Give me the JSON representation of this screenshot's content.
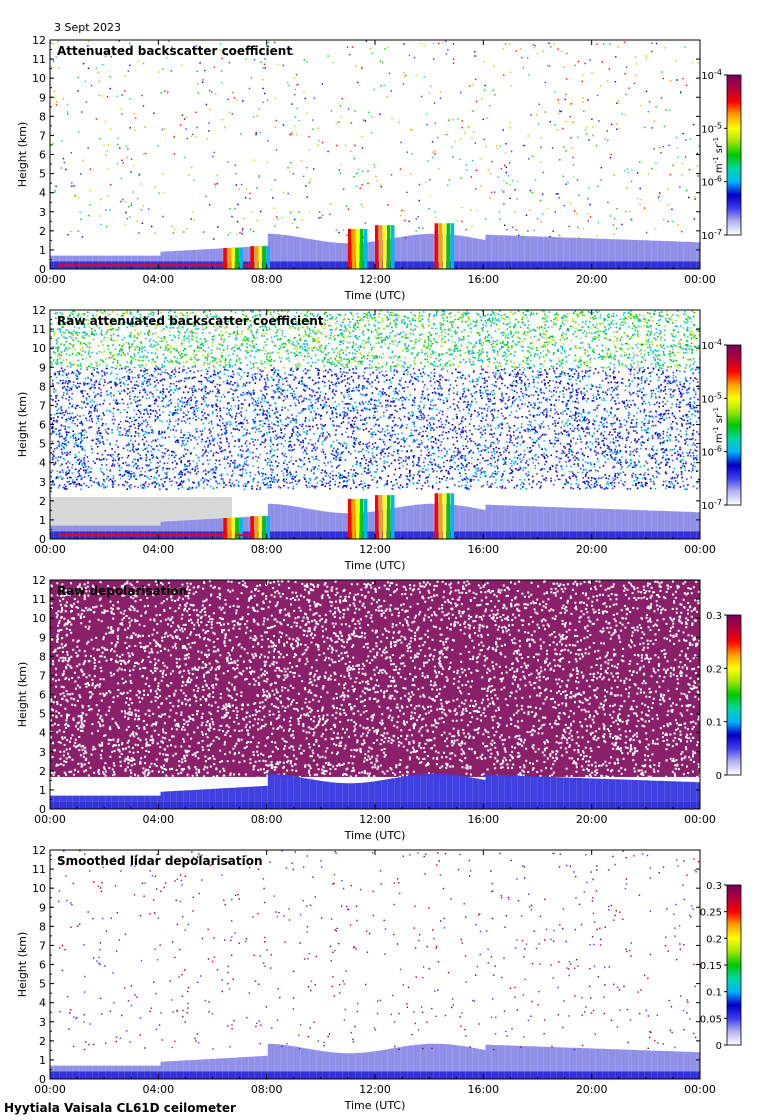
{
  "figure": {
    "date": "3 Sept 2023",
    "footer": "Hyytiala Vaisala CL61D ceilometer"
  },
  "chart_data": [
    {
      "type": "heatmap",
      "title": "Attenuated backscatter coefficient",
      "xlabel": "Time (UTC)",
      "ylabel": "Height (km)",
      "x_ticks": [
        "00:00",
        "04:00",
        "08:00",
        "12:00",
        "16:00",
        "20:00",
        "00:00"
      ],
      "x_range_hours": [
        0,
        24
      ],
      "y_ticks": [
        0,
        1,
        2,
        3,
        4,
        5,
        6,
        7,
        8,
        9,
        10,
        11,
        12
      ],
      "ylim": [
        0,
        12
      ],
      "colorbar": {
        "scale": "log",
        "range": [
          1e-07,
          0.0001
        ],
        "labels": [
          "10-7",
          "10-6",
          "10-5",
          "10-4"
        ],
        "unit": "m-1 sr-1"
      },
      "colormap": [
        "#ffffff",
        "#b4b4f0",
        "#3c3cf0",
        "#0000c8",
        "#00b4ff",
        "#00d8a0",
        "#00c800",
        "#a0e600",
        "#ffff00",
        "#ffa000",
        "#ff0000",
        "#b4003c",
        "#78005a"
      ]
    },
    {
      "type": "heatmap",
      "title": "Raw attenuated backscatter coefficient",
      "xlabel": "Time (UTC)",
      "ylabel": "Height (km)",
      "x_ticks": [
        "00:00",
        "04:00",
        "08:00",
        "12:00",
        "16:00",
        "20:00",
        "00:00"
      ],
      "x_range_hours": [
        0,
        24
      ],
      "y_ticks": [
        0,
        1,
        2,
        3,
        4,
        5,
        6,
        7,
        8,
        9,
        10,
        11,
        12
      ],
      "ylim": [
        0,
        12
      ],
      "colorbar": {
        "scale": "log",
        "range": [
          1e-07,
          0.0001
        ],
        "labels": [
          "10-7",
          "10-6",
          "10-5",
          "10-4"
        ],
        "unit": "m-1 sr-1"
      },
      "colormap": [
        "#ffffff",
        "#b4b4f0",
        "#3c3cf0",
        "#0000c8",
        "#00b4ff",
        "#00d8a0",
        "#00c800",
        "#a0e600",
        "#ffff00",
        "#ffa000",
        "#ff0000",
        "#b4003c",
        "#78005a"
      ]
    },
    {
      "type": "heatmap",
      "title": "Raw depolarisation",
      "xlabel": "Time (UTC)",
      "ylabel": "Height (km)",
      "x_ticks": [
        "00:00",
        "04:00",
        "08:00",
        "12:00",
        "16:00",
        "20:00",
        "00:00"
      ],
      "x_range_hours": [
        0,
        24
      ],
      "y_ticks": [
        0,
        1,
        2,
        3,
        4,
        5,
        6,
        7,
        8,
        9,
        10,
        11,
        12
      ],
      "ylim": [
        0,
        12
      ],
      "colorbar": {
        "scale": "linear",
        "range": [
          0,
          0.3
        ],
        "labels": [
          "0",
          "0.1",
          "0.2",
          "0.3"
        ],
        "unit": ""
      },
      "colormap": [
        "#ffffff",
        "#b4b4f0",
        "#3c3cf0",
        "#0000c8",
        "#00b4ff",
        "#00d8a0",
        "#00c800",
        "#a0e600",
        "#ffff00",
        "#ffa000",
        "#ff0000",
        "#b4003c",
        "#78005a"
      ]
    },
    {
      "type": "heatmap",
      "title": "Smoothed lidar depolarisation",
      "xlabel": "Time (UTC)",
      "ylabel": "Height (km)",
      "x_ticks": [
        "00:00",
        "04:00",
        "08:00",
        "12:00",
        "16:00",
        "20:00",
        "00:00"
      ],
      "x_range_hours": [
        0,
        24
      ],
      "y_ticks": [
        0,
        1,
        2,
        3,
        4,
        5,
        6,
        7,
        8,
        9,
        10,
        11,
        12
      ],
      "ylim": [
        0,
        12
      ],
      "colorbar": {
        "scale": "linear",
        "range": [
          0,
          0.3
        ],
        "labels": [
          "0",
          "0.05",
          "0.1",
          "0.15",
          "0.2",
          "0.25",
          "0.3"
        ],
        "unit": ""
      },
      "colormap": [
        "#ffffff",
        "#b4b4f0",
        "#3c3cf0",
        "#0000c8",
        "#00b4ff",
        "#00d8a0",
        "#00c800",
        "#a0e600",
        "#ffff00",
        "#ffa000",
        "#ff0000",
        "#b4003c",
        "#78005a"
      ]
    }
  ]
}
